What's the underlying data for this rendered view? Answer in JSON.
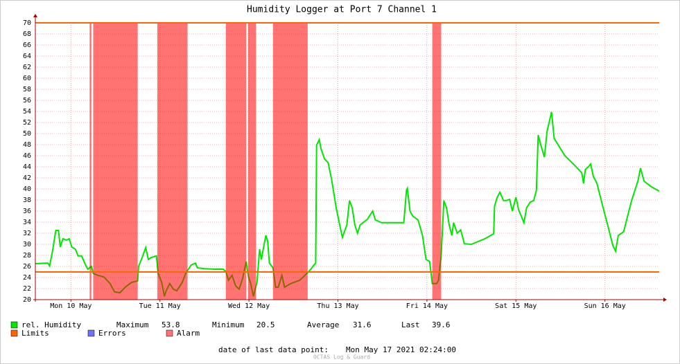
{
  "chart_data": {
    "type": "line",
    "title": "Humidity Logger at Port 7 Channel 1",
    "xlim": [
      -0.4,
      6.61
    ],
    "xticks": [
      {
        "value": 0,
        "label": "Mon 10 May"
      },
      {
        "value": 1,
        "label": "Tue 11 May"
      },
      {
        "value": 2,
        "label": "Wed 12 May"
      },
      {
        "value": 3,
        "label": "Thu 13 May"
      },
      {
        "value": 4,
        "label": "Fri 14 May"
      },
      {
        "value": 5,
        "label": "Sat 15 May"
      },
      {
        "value": 6,
        "label": "Sun 16 May"
      }
    ],
    "ylim": [
      20,
      70
    ],
    "yticks": [
      20,
      22,
      24,
      26,
      28,
      30,
      32,
      34,
      36,
      38,
      40,
      42,
      44,
      46,
      48,
      50,
      52,
      54,
      56,
      58,
      60,
      62,
      64,
      66,
      68,
      70
    ],
    "grid": true,
    "x": [
      -0.4,
      -0.26,
      -0.24,
      -0.21,
      -0.17,
      -0.14,
      -0.12,
      -0.09,
      -0.05,
      -0.02,
      0.01,
      0.05,
      0.08,
      0.12,
      0.16,
      0.19,
      0.23,
      0.25,
      0.3,
      0.37,
      0.44,
      0.49,
      0.55,
      0.61,
      0.68,
      0.75,
      0.76,
      0.8,
      0.84,
      0.87,
      0.9,
      0.96,
      0.98,
      1.02,
      1.05,
      1.07,
      1.11,
      1.15,
      1.19,
      1.25,
      1.29,
      1.35,
      1.4,
      1.42,
      1.5,
      1.62,
      1.71,
      1.74,
      1.77,
      1.81,
      1.85,
      1.89,
      1.93,
      1.97,
      1.99,
      2.02,
      2.05,
      2.09,
      2.12,
      2.14,
      2.16,
      2.19,
      2.21,
      2.23,
      2.27,
      2.3,
      2.33,
      2.37,
      2.4,
      2.47,
      2.57,
      2.63,
      2.69,
      2.73,
      2.75,
      2.76,
      2.79,
      2.81,
      2.85,
      2.89,
      2.93,
      2.98,
      3.02,
      3.05,
      3.1,
      3.13,
      3.16,
      3.19,
      3.22,
      3.25,
      3.33,
      3.39,
      3.42,
      3.49,
      3.6,
      3.74,
      3.77,
      3.78,
      3.81,
      3.84,
      3.9,
      3.95,
      3.99,
      4.03,
      4.06,
      4.11,
      4.13,
      4.16,
      4.19,
      4.22,
      4.25,
      4.28,
      4.3,
      4.34,
      4.38,
      4.42,
      4.5,
      4.65,
      4.75,
      4.76,
      4.79,
      4.82,
      4.86,
      4.89,
      4.93,
      4.96,
      5.0,
      5.03,
      5.06,
      5.09,
      5.12,
      5.16,
      5.2,
      5.23,
      5.25,
      5.28,
      5.32,
      5.35,
      5.4,
      5.43,
      5.55,
      5.67,
      5.74,
      5.76,
      5.78,
      5.82,
      5.84,
      5.87,
      5.91,
      5.98,
      6.04,
      6.09,
      6.12,
      6.15,
      6.21,
      6.26,
      6.3,
      6.37,
      6.4,
      6.44,
      6.52,
      6.61
    ],
    "series": [
      {
        "name": "rel. Humidity",
        "color": "#00e600",
        "values": [
          26.5,
          26.6,
          26.1,
          28.5,
          32.5,
          32.5,
          29.5,
          31,
          30.75,
          31,
          29.5,
          29.1,
          27.9,
          27.9,
          26.4,
          25.5,
          26,
          24.75,
          24.4,
          24.1,
          22.9,
          21.4,
          21.25,
          22.25,
          23.1,
          23.4,
          26,
          27.6,
          29.4,
          27.25,
          27.6,
          27.9,
          24.75,
          23.1,
          20.6,
          21.6,
          22.9,
          21.9,
          21.6,
          23.1,
          24.75,
          26.25,
          26.6,
          25.75,
          25.6,
          25.5,
          25.5,
          25.1,
          23.5,
          24.4,
          22.5,
          21.9,
          23.9,
          26.9,
          24.4,
          22.9,
          20.6,
          23.1,
          29.1,
          27.25,
          29.1,
          31.6,
          30.6,
          26.6,
          25.75,
          22.25,
          22.25,
          24.4,
          22.25,
          22.9,
          23.5,
          24.4,
          25.4,
          26.25,
          26.6,
          47.9,
          48.9,
          47.25,
          45.4,
          44.75,
          41.6,
          36.6,
          33.5,
          31.25,
          33.5,
          37.9,
          36.6,
          33.5,
          32,
          33.5,
          34.5,
          36,
          34.4,
          33.9,
          33.9,
          33.9,
          39.75,
          40.1,
          36,
          35.1,
          34.4,
          31.6,
          27.25,
          26.9,
          22.9,
          22.9,
          23.5,
          27.9,
          37.9,
          36.6,
          33.5,
          31.6,
          33.9,
          32,
          32.6,
          30.1,
          30,
          31,
          31.9,
          36.9,
          38.5,
          39.4,
          37.9,
          37.9,
          38.1,
          36,
          38.5,
          36.25,
          35.1,
          33.9,
          36.6,
          37.6,
          37.9,
          39.75,
          49.75,
          47.9,
          45.75,
          50.4,
          53.9,
          49.1,
          46,
          44.1,
          42.9,
          41,
          43.5,
          44.1,
          44.5,
          42.25,
          41,
          36.6,
          32.9,
          29.75,
          28.75,
          31.6,
          32.25,
          35.4,
          37.9,
          41.4,
          43.75,
          41.4,
          40.4,
          39.6
        ]
      }
    ],
    "stats": [
      {
        "label": "Maximum",
        "value": 53.8
      },
      {
        "label": "Minimum",
        "value": 20.5
      },
      {
        "label": "Average",
        "value": 31.6
      },
      {
        "label": "Last",
        "value": 39.6
      }
    ],
    "limits": {
      "name": "Limits",
      "color": "#ff6600",
      "values": [
        70,
        25
      ]
    },
    "errors": {
      "name": "Errors",
      "color": "#7070ff"
    },
    "alarm": {
      "name": "Alarm",
      "color": "#ff0000",
      "ranges": [
        [
          0.21,
          0.23
        ],
        [
          0.25,
          0.75
        ],
        [
          0.97,
          1.31
        ],
        [
          1.74,
          1.97
        ],
        [
          1.99,
          2.08
        ],
        [
          2.27,
          2.66
        ],
        [
          4.06,
          4.16
        ]
      ]
    },
    "footer_label": "date of last data point:",
    "footer_date": "Mon May 17 2021 02:24:00",
    "watermark": "OCTAS Log & Guard"
  }
}
